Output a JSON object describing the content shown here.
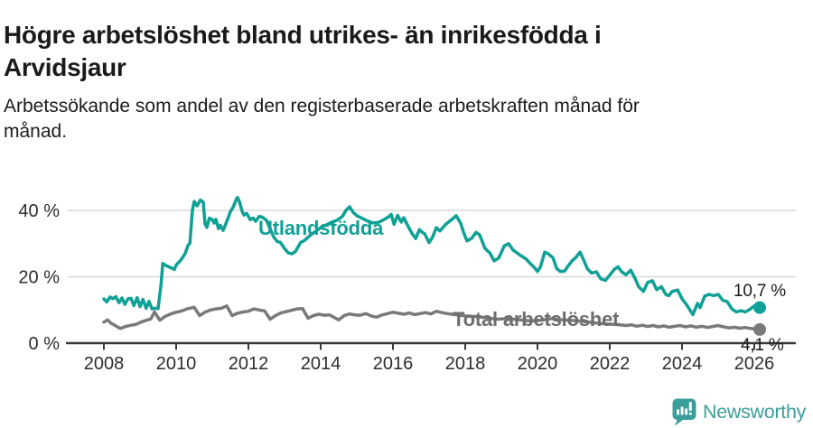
{
  "header": {
    "title": "Högre arbetslöshet bland utrikes- än inrikesfödda i Arvidsjaur",
    "subtitle": "Arbetssökande som andel av den registerbaserade arbetskraften månad för månad."
  },
  "footer": {
    "brand": "Newsworthy"
  },
  "colors": {
    "foreign_born_line": "#0fa096",
    "total_line": "#7a7a7a",
    "total_label": "#6d6d72",
    "gridline": "#d9d9d9",
    "axis": "#3a3a3a",
    "axis_text": "#2d2d2d",
    "brand_teal": "#3c9e9b"
  },
  "chart_data": {
    "type": "line",
    "title": "Högre arbetslöshet bland utrikes- än inrikesfödda i Arvidsjaur",
    "subtitle": "Arbetssökande som andel av den registerbaserade arbetskraften månad för månad.",
    "xlabel": "",
    "ylabel": "",
    "x_unit": "year (decimal years, monthly observations)",
    "y_unit": "percent",
    "xlim": [
      2007,
      2027.15
    ],
    "ylim": [
      0,
      47.35
    ],
    "grid": "horizontal",
    "legend_position": "inline-labels",
    "x_ticks": [
      {
        "value": 2008,
        "label": "2008"
      },
      {
        "value": 2010,
        "label": "2010"
      },
      {
        "value": 2012,
        "label": "2012"
      },
      {
        "value": 2014,
        "label": "2014"
      },
      {
        "value": 2016,
        "label": "2016"
      },
      {
        "value": 2018,
        "label": "2018"
      },
      {
        "value": 2020,
        "label": "2020"
      },
      {
        "value": 2022,
        "label": "2022"
      },
      {
        "value": 2024,
        "label": "2024"
      },
      {
        "value": 2026,
        "label": "2026"
      }
    ],
    "y_ticks": [
      {
        "value": 0,
        "label": "0 %"
      },
      {
        "value": 20,
        "label": "20 %"
      },
      {
        "value": 40,
        "label": "40 %"
      }
    ],
    "series": [
      {
        "name": "Utlandsfödda",
        "color": "#0fa096",
        "end_value": 10.7,
        "end_label": "10,7 %",
        "points": [
          [
            2008.0,
            13.3
          ],
          [
            2008.08,
            12.4
          ],
          [
            2008.17,
            13.9
          ],
          [
            2008.25,
            13.4
          ],
          [
            2008.33,
            14.0
          ],
          [
            2008.42,
            12.2
          ],
          [
            2008.5,
            13.6
          ],
          [
            2008.58,
            11.7
          ],
          [
            2008.67,
            13.4
          ],
          [
            2008.75,
            13.5
          ],
          [
            2008.83,
            11.3
          ],
          [
            2008.92,
            13.7
          ],
          [
            2009.0,
            11.0
          ],
          [
            2009.08,
            13.2
          ],
          [
            2009.17,
            10.5
          ],
          [
            2009.25,
            12.6
          ],
          [
            2009.33,
            10.3
          ],
          [
            2009.42,
            10.5
          ],
          [
            2009.5,
            10.4
          ],
          [
            2009.58,
            17.5
          ],
          [
            2009.63,
            24.0
          ],
          [
            2009.75,
            23.2
          ],
          [
            2009.88,
            22.6
          ],
          [
            2009.95,
            22.2
          ],
          [
            2010.0,
            23.5
          ],
          [
            2010.13,
            25.0
          ],
          [
            2010.25,
            27.0
          ],
          [
            2010.33,
            29.5
          ],
          [
            2010.38,
            30.1
          ],
          [
            2010.45,
            40.0
          ],
          [
            2010.5,
            42.7
          ],
          [
            2010.58,
            41.4
          ],
          [
            2010.67,
            43.1
          ],
          [
            2010.75,
            42.5
          ],
          [
            2010.8,
            35.9
          ],
          [
            2010.85,
            34.9
          ],
          [
            2010.92,
            37.7
          ],
          [
            2011.0,
            37.2
          ],
          [
            2011.05,
            36.2
          ],
          [
            2011.1,
            37.3
          ],
          [
            2011.17,
            34.5
          ],
          [
            2011.22,
            35.5
          ],
          [
            2011.3,
            34.0
          ],
          [
            2011.42,
            37.2
          ],
          [
            2011.5,
            39.6
          ],
          [
            2011.58,
            41.0
          ],
          [
            2011.67,
            43.5
          ],
          [
            2011.7,
            43.9
          ],
          [
            2011.75,
            42.7
          ],
          [
            2011.83,
            39.6
          ],
          [
            2011.88,
            38.6
          ],
          [
            2011.95,
            39.1
          ],
          [
            2012.05,
            37.2
          ],
          [
            2012.13,
            37.7
          ],
          [
            2012.2,
            36.7
          ],
          [
            2012.3,
            38.2
          ],
          [
            2012.38,
            38.0
          ],
          [
            2012.5,
            37.0
          ],
          [
            2012.6,
            34.5
          ],
          [
            2012.7,
            32.0
          ],
          [
            2012.8,
            30.6
          ],
          [
            2012.88,
            30.4
          ],
          [
            2013.0,
            28.5
          ],
          [
            2013.1,
            27.2
          ],
          [
            2013.2,
            26.9
          ],
          [
            2013.3,
            27.6
          ],
          [
            2013.45,
            30.4
          ],
          [
            2013.55,
            30.9
          ],
          [
            2013.7,
            32.4
          ],
          [
            2013.85,
            33.6
          ],
          [
            2014.0,
            34.8
          ],
          [
            2014.15,
            35.6
          ],
          [
            2014.3,
            36.4
          ],
          [
            2014.45,
            37.0
          ],
          [
            2014.6,
            38.2
          ],
          [
            2014.7,
            40.0
          ],
          [
            2014.8,
            41.1
          ],
          [
            2014.9,
            39.4
          ],
          [
            2015.0,
            38.4
          ],
          [
            2015.15,
            37.6
          ],
          [
            2015.3,
            36.8
          ],
          [
            2015.45,
            36.2
          ],
          [
            2015.6,
            36.4
          ],
          [
            2015.75,
            37.2
          ],
          [
            2015.9,
            38.2
          ],
          [
            2015.95,
            38.8
          ],
          [
            2016.03,
            35.8
          ],
          [
            2016.13,
            38.5
          ],
          [
            2016.23,
            36.5
          ],
          [
            2016.3,
            37.8
          ],
          [
            2016.43,
            35.0
          ],
          [
            2016.53,
            33.0
          ],
          [
            2016.63,
            31.5
          ],
          [
            2016.73,
            34.2
          ],
          [
            2016.8,
            33.5
          ],
          [
            2016.88,
            32.9
          ],
          [
            2017.0,
            30.3
          ],
          [
            2017.1,
            32.0
          ],
          [
            2017.2,
            34.8
          ],
          [
            2017.3,
            33.8
          ],
          [
            2017.45,
            35.7
          ],
          [
            2017.6,
            37.0
          ],
          [
            2017.75,
            38.4
          ],
          [
            2017.88,
            36.0
          ],
          [
            2017.95,
            33.5
          ],
          [
            2018.05,
            30.8
          ],
          [
            2018.18,
            31.6
          ],
          [
            2018.3,
            33.4
          ],
          [
            2018.4,
            32.6
          ],
          [
            2018.55,
            28.5
          ],
          [
            2018.68,
            27.2
          ],
          [
            2018.8,
            24.8
          ],
          [
            2018.93,
            25.7
          ],
          [
            2019.08,
            29.3
          ],
          [
            2019.2,
            30.0
          ],
          [
            2019.33,
            28.0
          ],
          [
            2019.43,
            27.2
          ],
          [
            2019.55,
            26.3
          ],
          [
            2019.68,
            25.4
          ],
          [
            2019.8,
            24.0
          ],
          [
            2019.93,
            22.6
          ],
          [
            2020.0,
            21.6
          ],
          [
            2020.08,
            22.9
          ],
          [
            2020.2,
            27.4
          ],
          [
            2020.3,
            26.9
          ],
          [
            2020.43,
            25.7
          ],
          [
            2020.53,
            22.5
          ],
          [
            2020.63,
            21.6
          ],
          [
            2020.75,
            21.7
          ],
          [
            2020.85,
            23.3
          ],
          [
            2020.95,
            24.7
          ],
          [
            2021.05,
            25.7
          ],
          [
            2021.18,
            27.4
          ],
          [
            2021.28,
            25.0
          ],
          [
            2021.38,
            22.4
          ],
          [
            2021.5,
            21.1
          ],
          [
            2021.63,
            21.5
          ],
          [
            2021.75,
            19.4
          ],
          [
            2021.88,
            18.9
          ],
          [
            2022.0,
            20.5
          ],
          [
            2022.13,
            22.3
          ],
          [
            2022.23,
            23.0
          ],
          [
            2022.33,
            21.5
          ],
          [
            2022.45,
            20.6
          ],
          [
            2022.58,
            22.0
          ],
          [
            2022.7,
            19.5
          ],
          [
            2022.8,
            17.0
          ],
          [
            2022.93,
            15.6
          ],
          [
            2023.05,
            18.3
          ],
          [
            2023.18,
            18.8
          ],
          [
            2023.3,
            16.1
          ],
          [
            2023.43,
            17.0
          ],
          [
            2023.55,
            14.7
          ],
          [
            2023.63,
            14.3
          ],
          [
            2023.73,
            15.6
          ],
          [
            2023.88,
            16.0
          ],
          [
            2024.0,
            13.4
          ],
          [
            2024.13,
            11.5
          ],
          [
            2024.3,
            8.6
          ],
          [
            2024.43,
            12.0
          ],
          [
            2024.5,
            10.7
          ],
          [
            2024.63,
            14.2
          ],
          [
            2024.75,
            14.7
          ],
          [
            2024.88,
            14.3
          ],
          [
            2025.0,
            14.7
          ],
          [
            2025.13,
            12.9
          ],
          [
            2025.25,
            12.5
          ],
          [
            2025.38,
            10.3
          ],
          [
            2025.5,
            9.4
          ],
          [
            2025.63,
            9.8
          ],
          [
            2025.75,
            9.4
          ],
          [
            2025.88,
            10.2
          ],
          [
            2026.0,
            11.2
          ],
          [
            2026.15,
            10.7
          ]
        ]
      },
      {
        "name": "Total arbetslöshet",
        "color": "#7a7a7a",
        "end_value": 4.1,
        "end_label": "4,1 %",
        "points": [
          [
            2008.0,
            6.3
          ],
          [
            2008.1,
            7.0
          ],
          [
            2008.2,
            6.0
          ],
          [
            2008.3,
            5.4
          ],
          [
            2008.45,
            4.4
          ],
          [
            2008.6,
            5.0
          ],
          [
            2008.75,
            5.4
          ],
          [
            2008.9,
            5.7
          ],
          [
            2009.0,
            6.2
          ],
          [
            2009.15,
            6.8
          ],
          [
            2009.3,
            7.3
          ],
          [
            2009.4,
            9.4
          ],
          [
            2009.55,
            6.9
          ],
          [
            2009.7,
            8.1
          ],
          [
            2009.85,
            8.8
          ],
          [
            2010.0,
            9.3
          ],
          [
            2010.15,
            9.7
          ],
          [
            2010.3,
            10.3
          ],
          [
            2010.5,
            10.8
          ],
          [
            2010.65,
            8.3
          ],
          [
            2010.8,
            9.3
          ],
          [
            2010.95,
            10.0
          ],
          [
            2011.1,
            10.3
          ],
          [
            2011.25,
            10.5
          ],
          [
            2011.4,
            11.2
          ],
          [
            2011.55,
            8.3
          ],
          [
            2011.7,
            9.0
          ],
          [
            2011.85,
            9.4
          ],
          [
            2012.0,
            9.6
          ],
          [
            2012.15,
            10.3
          ],
          [
            2012.3,
            10.0
          ],
          [
            2012.45,
            9.7
          ],
          [
            2012.6,
            7.2
          ],
          [
            2012.75,
            8.3
          ],
          [
            2012.9,
            9.1
          ],
          [
            2013.05,
            9.5
          ],
          [
            2013.2,
            9.9
          ],
          [
            2013.35,
            10.3
          ],
          [
            2013.5,
            10.4
          ],
          [
            2013.65,
            7.5
          ],
          [
            2013.8,
            8.3
          ],
          [
            2013.95,
            8.7
          ],
          [
            2014.1,
            8.4
          ],
          [
            2014.25,
            8.5
          ],
          [
            2014.4,
            7.6
          ],
          [
            2014.5,
            7.0
          ],
          [
            2014.65,
            8.3
          ],
          [
            2014.8,
            8.8
          ],
          [
            2014.95,
            8.5
          ],
          [
            2015.1,
            8.4
          ],
          [
            2015.25,
            8.9
          ],
          [
            2015.4,
            8.2
          ],
          [
            2015.55,
            7.8
          ],
          [
            2015.7,
            8.5
          ],
          [
            2015.85,
            8.9
          ],
          [
            2016.0,
            9.3
          ],
          [
            2016.15,
            9.0
          ],
          [
            2016.3,
            8.7
          ],
          [
            2016.45,
            9.1
          ],
          [
            2016.6,
            8.6
          ],
          [
            2016.75,
            8.9
          ],
          [
            2016.9,
            9.2
          ],
          [
            2017.05,
            8.8
          ],
          [
            2017.2,
            9.6
          ],
          [
            2017.35,
            9.2
          ],
          [
            2017.5,
            8.9
          ],
          [
            2017.7,
            8.6
          ],
          [
            2018.0,
            8.2
          ],
          [
            2018.3,
            8.0
          ],
          [
            2018.6,
            7.6
          ],
          [
            2018.9,
            7.2
          ],
          [
            2019.2,
            7.4
          ],
          [
            2019.5,
            7.0
          ],
          [
            2019.8,
            6.7
          ],
          [
            2020.1,
            6.9
          ],
          [
            2020.4,
            7.4
          ],
          [
            2020.7,
            7.0
          ],
          [
            2021.0,
            6.8
          ],
          [
            2021.3,
            6.5
          ],
          [
            2021.6,
            6.1
          ],
          [
            2021.9,
            5.8
          ],
          [
            2022.2,
            5.6
          ],
          [
            2022.45,
            5.3
          ],
          [
            2022.6,
            5.5
          ],
          [
            2022.75,
            5.1
          ],
          [
            2022.9,
            5.4
          ],
          [
            2023.05,
            5.0
          ],
          [
            2023.2,
            5.3
          ],
          [
            2023.35,
            4.9
          ],
          [
            2023.5,
            5.2
          ],
          [
            2023.65,
            4.8
          ],
          [
            2023.8,
            5.1
          ],
          [
            2023.95,
            5.3
          ],
          [
            2024.1,
            4.9
          ],
          [
            2024.25,
            5.2
          ],
          [
            2024.4,
            4.8
          ],
          [
            2024.55,
            5.1
          ],
          [
            2024.7,
            4.7
          ],
          [
            2024.85,
            5.0
          ],
          [
            2025.0,
            5.3
          ],
          [
            2025.15,
            4.9
          ],
          [
            2025.3,
            4.6
          ],
          [
            2025.45,
            4.8
          ],
          [
            2025.6,
            4.5
          ],
          [
            2025.75,
            4.7
          ],
          [
            2025.9,
            4.4
          ],
          [
            2026.0,
            4.3
          ],
          [
            2026.15,
            4.1
          ]
        ]
      }
    ]
  }
}
